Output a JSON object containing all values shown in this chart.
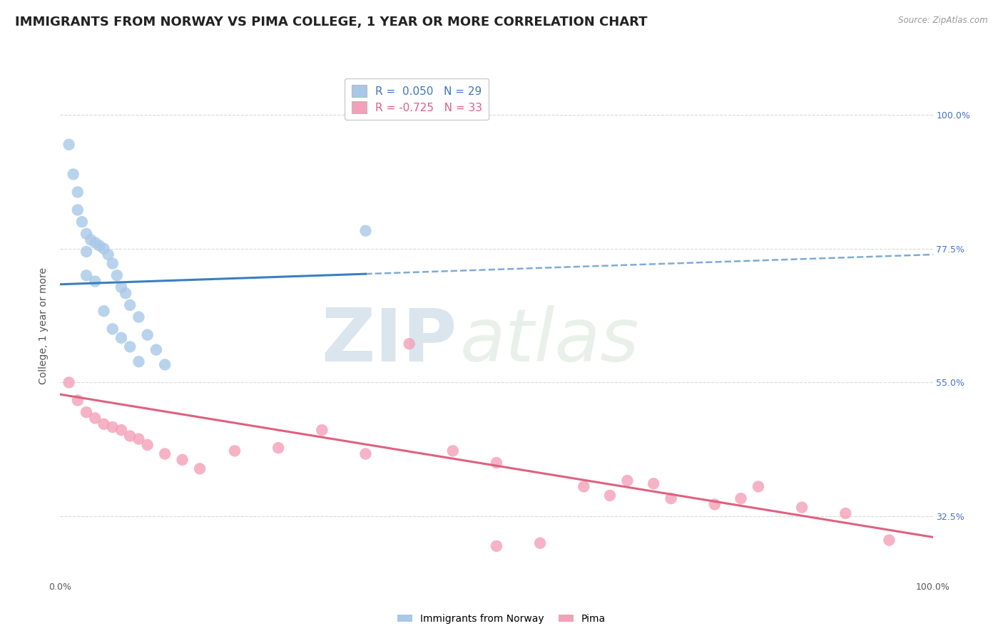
{
  "title": "IMMIGRANTS FROM NORWAY VS PIMA COLLEGE, 1 YEAR OR MORE CORRELATION CHART",
  "source_text": "Source: ZipAtlas.com",
  "ylabel": "College, 1 year or more",
  "xlim": [
    0.0,
    100.0
  ],
  "ylim": [
    22.0,
    107.0
  ],
  "right_yticks": [
    32.5,
    55.0,
    77.5,
    100.0
  ],
  "right_ytick_labels": [
    "32.5%",
    "55.0%",
    "77.5%",
    "100.0%"
  ],
  "blue_label": "Immigrants from Norway",
  "pink_label": "Pima",
  "blue_R": 0.05,
  "blue_N": 29,
  "pink_R": -0.725,
  "pink_N": 33,
  "blue_dot_color": "#a8c8e8",
  "pink_dot_color": "#f4a0b8",
  "blue_line_color": "#3a7fc1",
  "pink_line_color": "#e06080",
  "right_label_color": "#4472c4",
  "background_color": "#ffffff",
  "grid_color": "#d5d5d5",
  "title_color": "#222222",
  "source_color": "#999999",
  "ylabel_color": "#555555",
  "xtick_color": "#555555",
  "blue_scatter_x": [
    1.0,
    1.5,
    2.0,
    2.5,
    3.0,
    3.5,
    4.0,
    4.5,
    5.0,
    5.5,
    6.0,
    6.5,
    7.0,
    7.5,
    8.0,
    9.0,
    10.0,
    11.0,
    12.0,
    2.0,
    3.0,
    4.0,
    5.0,
    6.0,
    7.0,
    8.0,
    9.0,
    35.0,
    3.0
  ],
  "blue_scatter_y": [
    95.0,
    90.0,
    84.0,
    82.0,
    80.0,
    79.0,
    78.5,
    78.0,
    77.5,
    76.5,
    75.0,
    73.0,
    71.0,
    70.0,
    68.0,
    66.0,
    63.0,
    60.5,
    58.0,
    87.0,
    77.0,
    72.0,
    67.0,
    64.0,
    62.5,
    61.0,
    58.5,
    80.5,
    73.0
  ],
  "pink_scatter_x": [
    1.0,
    2.0,
    3.0,
    4.0,
    5.0,
    6.0,
    7.0,
    8.0,
    9.0,
    10.0,
    12.0,
    14.0,
    16.0,
    20.0,
    25.0,
    30.0,
    35.0,
    40.0,
    45.0,
    50.0,
    55.0,
    60.0,
    63.0,
    65.0,
    68.0,
    70.0,
    75.0,
    78.0,
    80.0,
    85.0,
    90.0,
    95.0,
    50.0
  ],
  "pink_scatter_y": [
    55.0,
    52.0,
    50.0,
    49.0,
    48.0,
    47.5,
    47.0,
    46.0,
    45.5,
    44.5,
    43.0,
    42.0,
    40.5,
    43.5,
    44.0,
    47.0,
    43.0,
    61.5,
    43.5,
    41.5,
    28.0,
    37.5,
    36.0,
    38.5,
    38.0,
    35.5,
    34.5,
    35.5,
    37.5,
    34.0,
    33.0,
    28.5,
    27.5
  ],
  "blue_line_y_at_0": 71.5,
  "blue_line_y_at_100": 76.5,
  "blue_solid_end_x": 35.0,
  "pink_line_y_at_0": 53.0,
  "pink_line_y_at_100": 29.0,
  "watermark_zip": "ZIP",
  "watermark_atlas": "atlas",
  "title_fontsize": 13,
  "label_fontsize": 10,
  "tick_fontsize": 9,
  "legend_fontsize": 11
}
